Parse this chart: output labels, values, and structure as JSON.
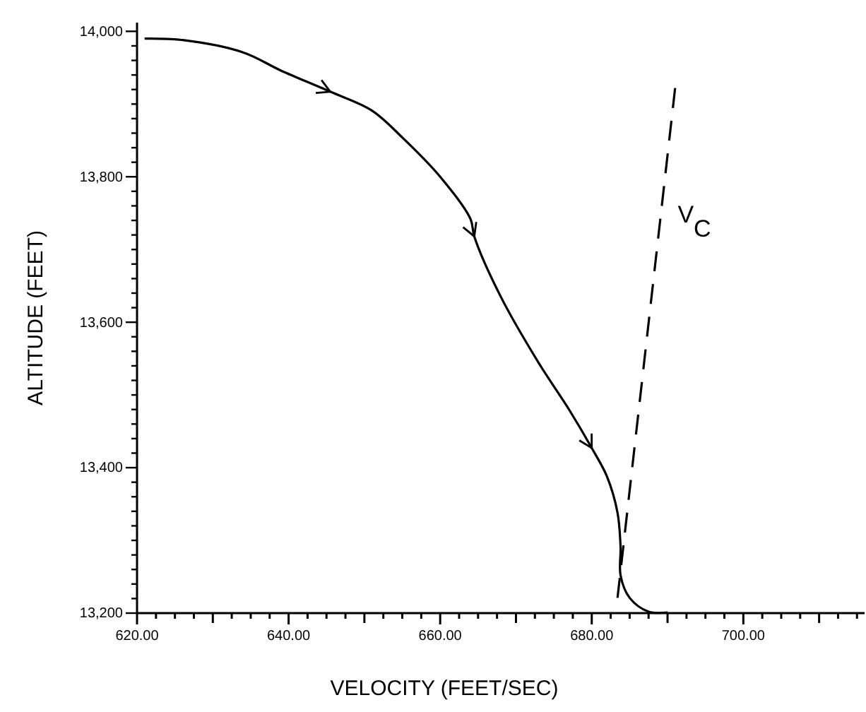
{
  "chart_data": {
    "type": "line",
    "xlabel": "VELOCITY (FEET/SEC)",
    "ylabel": "ALTITUDE (FEET)",
    "xlim": [
      620,
      716
    ],
    "ylim": [
      13200,
      14012
    ],
    "xticks": [
      {
        "value": 620,
        "label": "620.00"
      },
      {
        "value": 622.5,
        "label": null
      },
      {
        "value": 625,
        "label": null
      },
      {
        "value": 627.5,
        "label": null
      },
      {
        "value": 630,
        "label": null
      },
      {
        "value": 632.5,
        "label": null
      },
      {
        "value": 635,
        "label": null
      },
      {
        "value": 637.5,
        "label": null
      },
      {
        "value": 640,
        "label": "640.00"
      },
      {
        "value": 642.5,
        "label": null
      },
      {
        "value": 645,
        "label": null
      },
      {
        "value": 647.5,
        "label": null
      },
      {
        "value": 650,
        "label": null
      },
      {
        "value": 652.5,
        "label": null
      },
      {
        "value": 655,
        "label": null
      },
      {
        "value": 657.5,
        "label": null
      },
      {
        "value": 660,
        "label": "660.00"
      },
      {
        "value": 662.5,
        "label": null
      },
      {
        "value": 665,
        "label": null
      },
      {
        "value": 667.5,
        "label": null
      },
      {
        "value": 670,
        "label": null
      },
      {
        "value": 672.5,
        "label": null
      },
      {
        "value": 675,
        "label": null
      },
      {
        "value": 677.5,
        "label": null
      },
      {
        "value": 680,
        "label": "680.00"
      },
      {
        "value": 682.5,
        "label": null
      },
      {
        "value": 685,
        "label": null
      },
      {
        "value": 687.5,
        "label": null
      },
      {
        "value": 690,
        "label": null
      },
      {
        "value": 692.5,
        "label": null
      },
      {
        "value": 695,
        "label": null
      },
      {
        "value": 697.5,
        "label": null
      },
      {
        "value": 700,
        "label": "700.00"
      },
      {
        "value": 702.5,
        "label": null
      },
      {
        "value": 705,
        "label": null
      },
      {
        "value": 707.5,
        "label": null
      },
      {
        "value": 710,
        "label": null
      },
      {
        "value": 712.5,
        "label": null
      },
      {
        "value": 715,
        "label": null
      }
    ],
    "yticks": [
      {
        "value": 13200,
        "label": "13,200"
      },
      {
        "value": 13220,
        "label": null
      },
      {
        "value": 13240,
        "label": null
      },
      {
        "value": 13260,
        "label": null
      },
      {
        "value": 13280,
        "label": null
      },
      {
        "value": 13300,
        "label": null
      },
      {
        "value": 13320,
        "label": null
      },
      {
        "value": 13340,
        "label": null
      },
      {
        "value": 13360,
        "label": null
      },
      {
        "value": 13380,
        "label": null
      },
      {
        "value": 13400,
        "label": "13,400"
      },
      {
        "value": 13420,
        "label": null
      },
      {
        "value": 13440,
        "label": null
      },
      {
        "value": 13460,
        "label": null
      },
      {
        "value": 13480,
        "label": null
      },
      {
        "value": 13500,
        "label": null
      },
      {
        "value": 13520,
        "label": null
      },
      {
        "value": 13540,
        "label": null
      },
      {
        "value": 13560,
        "label": null
      },
      {
        "value": 13580,
        "label": null
      },
      {
        "value": 13600,
        "label": "13,600"
      },
      {
        "value": 13620,
        "label": null
      },
      {
        "value": 13640,
        "label": null
      },
      {
        "value": 13660,
        "label": null
      },
      {
        "value": 13680,
        "label": null
      },
      {
        "value": 13700,
        "label": null
      },
      {
        "value": 13720,
        "label": null
      },
      {
        "value": 13740,
        "label": null
      },
      {
        "value": 13760,
        "label": null
      },
      {
        "value": 13780,
        "label": null
      },
      {
        "value": 13800,
        "label": "13,800"
      },
      {
        "value": 13820,
        "label": null
      },
      {
        "value": 13840,
        "label": null
      },
      {
        "value": 13860,
        "label": null
      },
      {
        "value": 13880,
        "label": null
      },
      {
        "value": 13900,
        "label": null
      },
      {
        "value": 13920,
        "label": null
      },
      {
        "value": 13940,
        "label": null
      },
      {
        "value": 13960,
        "label": null
      },
      {
        "value": 13980,
        "label": null
      },
      {
        "value": 14000,
        "label": "14,000"
      }
    ],
    "grid": false,
    "legend": false,
    "marker": "none",
    "series": [
      {
        "color": "#000000",
        "line_style": "solid",
        "x": [
          621,
          626,
          634,
          639,
          645.5,
          651,
          655,
          660,
          664,
          664.5,
          668,
          673,
          677,
          680,
          682,
          683.4,
          683.8,
          683.8,
          685,
          687.5,
          690
        ],
        "values": [
          13990,
          13988,
          13971,
          13946,
          13917,
          13891,
          13854,
          13800,
          13742,
          13718,
          13635,
          13544,
          13480,
          13427,
          13388,
          13338,
          13291,
          13252,
          13221,
          13202,
          13201
        ]
      },
      {
        "name": "V$_{C}$",
        "color": "#000000",
        "line_style": "dashed",
        "x": [
          691,
          683.4
        ],
        "values": [
          13922,
          13221
        ]
      }
    ]
  }
}
